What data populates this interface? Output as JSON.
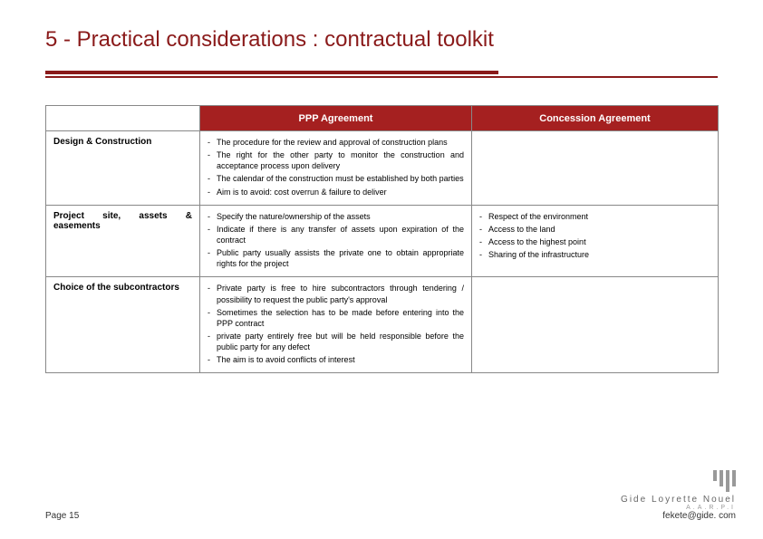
{
  "title": "5 - Practical considerations : contractual toolkit",
  "colors": {
    "accent": "#8a1a1a",
    "header_bg": "#a52020",
    "header_text": "#ffffff",
    "cell_border": "#888888",
    "body_text": "#000000",
    "logo_bar": "#999999"
  },
  "table": {
    "headers": [
      "",
      "PPP Agreement",
      "Concession Agreement"
    ],
    "rows": [
      {
        "label": "Design & Construction",
        "ppp": [
          "The procedure for the review and approval of construction plans",
          "The right for the other party to monitor the construction and acceptance process upon delivery",
          "The calendar of the construction must be established by both parties",
          "Aim is to avoid: cost overrun & failure to deliver"
        ],
        "concession": []
      },
      {
        "label": "Project site, assets & easements",
        "ppp": [
          "Specify the nature/ownership of the assets",
          "Indicate if there is any transfer of assets upon expiration of the contract",
          "Public party usually assists the private one to obtain appropriate rights for the project"
        ],
        "concession": [
          "Respect of the environment",
          "Access to the land",
          "Access to the highest point",
          "Sharing of the infrastructure"
        ]
      },
      {
        "label": "Choice of the subcontractors",
        "ppp": [
          "Private party is free to hire subcontractors through tendering / possibility to request the public party's approval",
          "Sometimes the selection has to be made before entering into the PPP contract",
          "private party entirely free but will be held responsible before the public party for any defect",
          "The aim is to avoid conflicts of interest"
        ],
        "concession": []
      }
    ]
  },
  "footer": {
    "page": "Page 15",
    "firm": "Gide Loyrette Nouel",
    "sub": "A.A.R.P.I",
    "email": "fekete@gide. com"
  }
}
